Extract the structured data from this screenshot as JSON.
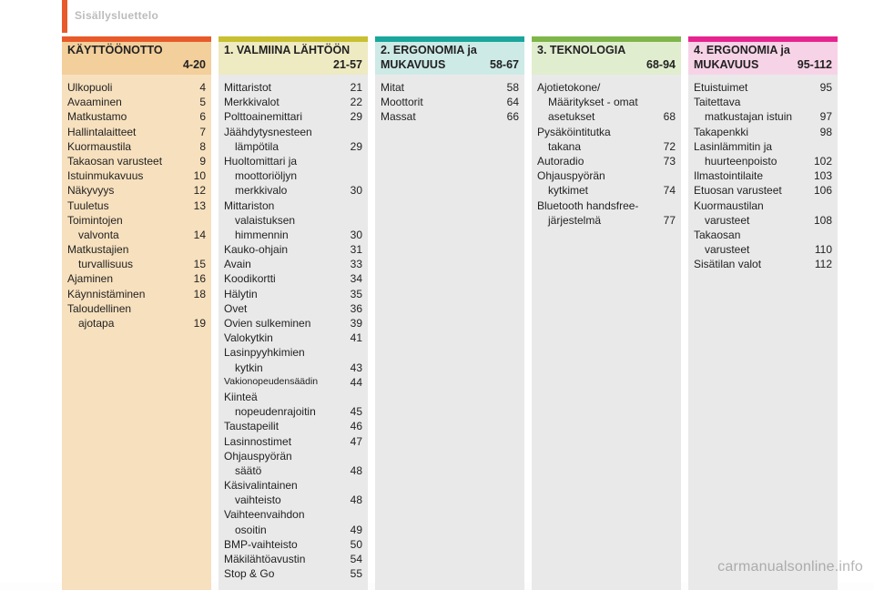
{
  "header": {
    "title": "Sisällysluettelo",
    "page_number": ""
  },
  "watermark": "carmanualsonline.info",
  "columns": [
    {
      "id": "col1",
      "title_num": "",
      "title": "KÄYTTÖÖNOTTO",
      "range": "4-20",
      "border_color": "#e85a2a",
      "header_bg": "#f3cf9b",
      "body_bg": "#f7e0bd",
      "entries": [
        {
          "label": "Ulkopuoli",
          "page": "4"
        },
        {
          "label": "Avaaminen",
          "page": "5"
        },
        {
          "label": "Matkustamo",
          "page": "6"
        },
        {
          "label": "Hallintalaitteet",
          "page": "7"
        },
        {
          "label": "Kuormaustila",
          "page": "8"
        },
        {
          "label": "Takaosan varusteet",
          "page": "9"
        },
        {
          "label": "Istuinmukavuus",
          "page": "10"
        },
        {
          "label": "Näkyvyys",
          "page": "12"
        },
        {
          "label": "Tuuletus",
          "page": "13"
        },
        {
          "label": "Toimintojen",
          "sub": "valvonta",
          "page": "14"
        },
        {
          "label": "Matkustajien",
          "sub": "turvallisuus",
          "page": "15"
        },
        {
          "label": "Ajaminen",
          "page": "16"
        },
        {
          "label": "Käynnistäminen",
          "page": "18"
        },
        {
          "label": "Taloudellinen",
          "sub": "ajotapa",
          "page": "19"
        }
      ]
    },
    {
      "id": "col2",
      "title_num": "1.",
      "title": "VALMIINA LÄHTÖÖN",
      "range": "21-57",
      "border_color": "#c8c030",
      "header_bg": "#eeeac2",
      "body_bg": "#e9e9e9",
      "entries": [
        {
          "label": "Mittaristot",
          "page": "21"
        },
        {
          "label": "Merkkivalot",
          "page": "22"
        },
        {
          "label": "Polttoainemittari",
          "page": "29"
        },
        {
          "label": "Jäähdytysnesteen",
          "sub": "lämpötila",
          "page": "29"
        },
        {
          "label": "Huoltomittari ja",
          "sub": "moottoriöljyn",
          "sub2": "merkkivalo",
          "page": "30"
        },
        {
          "label": "Mittariston",
          "sub": "valaistuksen",
          "sub2": "himmennin",
          "page": "30"
        },
        {
          "label": "Kauko-ohjain",
          "page": "31"
        },
        {
          "label": "Avain",
          "page": "33"
        },
        {
          "label": "Koodikortti",
          "page": "34"
        },
        {
          "label": "Hälytin",
          "page": "35"
        },
        {
          "label": "Ovet",
          "page": "36"
        },
        {
          "label": "Ovien sulkeminen",
          "page": "39"
        },
        {
          "label": "Valokytkin",
          "page": "41"
        },
        {
          "label": "Lasinpyyhkimien",
          "sub": "kytkin",
          "page": "43"
        },
        {
          "label": "Vakionopeudensäädin",
          "page": "44",
          "small": true
        },
        {
          "label": "Kiinteä",
          "sub": "nopeudenrajoitin",
          "page": "45"
        },
        {
          "label": "Taustapeilit",
          "page": "46"
        },
        {
          "label": "Lasinnostimet",
          "page": "47"
        },
        {
          "label": "Ohjauspyörän",
          "sub": "säätö",
          "page": "48"
        },
        {
          "label": "Käsivalintainen",
          "sub": "vaihteisto",
          "page": "48"
        },
        {
          "label": "Vaihteenvaihdon",
          "sub": "osoitin",
          "page": "49"
        },
        {
          "label": "BMP-vaihteisto",
          "page": "50"
        },
        {
          "label": "Mäkilähtöavustin",
          "page": "54"
        },
        {
          "label": "Stop & Go",
          "page": "55"
        }
      ]
    },
    {
      "id": "col3",
      "title_num": "2.",
      "title": "ERGONOMIA ja MUKAVUUS",
      "range": "58-67",
      "border_color": "#1aa69c",
      "header_bg": "#cdeae6",
      "body_bg": "#e9e9e9",
      "entries": [
        {
          "label": "Mitat",
          "page": "58"
        },
        {
          "label": "Moottorit",
          "page": "64"
        },
        {
          "label": "Massat",
          "page": "66"
        }
      ]
    },
    {
      "id": "col4",
      "title_num": "3.",
      "title": "TEKNOLOGIA",
      "range": "68-94",
      "border_color": "#7fb64a",
      "header_bg": "#e1edcf",
      "body_bg": "#e9e9e9",
      "entries": [
        {
          "label": "Ajotietokone/",
          "sub": "Määritykset - omat",
          "sub2": "asetukset",
          "page": "68"
        },
        {
          "label": "Pysäköintitutka",
          "sub": "takana",
          "page": "72"
        },
        {
          "label": "Autoradio",
          "page": "73"
        },
        {
          "label": "Ohjauspyörän",
          "sub": "kytkimet",
          "page": "74"
        },
        {
          "label": "Bluetooth handsfree-",
          "sub": "järjestelmä",
          "page": "77"
        }
      ]
    },
    {
      "id": "col5",
      "title_num": "4.",
      "title": "ERGONOMIA ja MUKAVUUS",
      "range": "95-112",
      "border_color": "#e6248f",
      "header_bg": "#f7d3e7",
      "body_bg": "#e9e9e9",
      "entries": [
        {
          "label": "Etuistuimet",
          "page": "95"
        },
        {
          "label": "Taitettava",
          "sub": "matkustajan istuin",
          "page": "97"
        },
        {
          "label": "Takapenkki",
          "page": "98"
        },
        {
          "label": "Lasinlämmitin ja",
          "sub": "huurteenpoisto",
          "page": "102"
        },
        {
          "label": "Ilmastointilaite",
          "page": "103"
        },
        {
          "label": "Etuosan varusteet",
          "page": "106"
        },
        {
          "label": "Kuormaustilan",
          "sub": "varusteet",
          "page": "108"
        },
        {
          "label": "Takaosan",
          "sub": "varusteet",
          "page": "110"
        },
        {
          "label": "Sisätilan valot",
          "page": "112"
        }
      ]
    }
  ]
}
